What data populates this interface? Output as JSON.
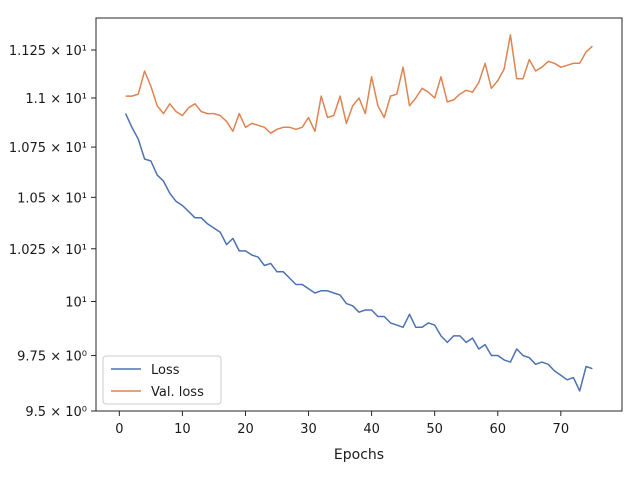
{
  "chart_data": {
    "type": "line",
    "title": "",
    "xlabel": "Epochs",
    "ylabel": "",
    "y_scale": "log",
    "xlim": [
      -3.7,
      79.7
    ],
    "ylim": [
      9.5,
      11.42
    ],
    "grid": false,
    "legend_position": "lower-left",
    "x_ticks": [
      0,
      10,
      20,
      30,
      40,
      50,
      60,
      70
    ],
    "y_ticks": [
      {
        "value": 9.5,
        "label": "9.5 × 10⁰"
      },
      {
        "value": 9.75,
        "label": "9.75 × 10⁰"
      },
      {
        "value": 10,
        "label": "10¹"
      },
      {
        "value": 10.25,
        "label": "1.025 × 10¹"
      },
      {
        "value": 10.5,
        "label": "1.05 × 10¹"
      },
      {
        "value": 10.75,
        "label": "1.075 × 10¹"
      },
      {
        "value": 11.0,
        "label": "1.1 × 10¹"
      },
      {
        "value": 11.25,
        "label": "1.125 × 10¹"
      }
    ],
    "x": [
      1,
      2,
      3,
      4,
      5,
      6,
      7,
      8,
      9,
      10,
      11,
      12,
      13,
      14,
      15,
      16,
      17,
      18,
      19,
      20,
      21,
      22,
      23,
      24,
      25,
      26,
      27,
      28,
      29,
      30,
      31,
      32,
      33,
      34,
      35,
      36,
      37,
      38,
      39,
      40,
      41,
      42,
      43,
      44,
      45,
      46,
      47,
      48,
      49,
      50,
      51,
      52,
      53,
      54,
      55,
      56,
      57,
      58,
      59,
      60,
      61,
      62,
      63,
      64,
      65,
      66,
      67,
      68,
      69,
      70,
      71,
      72,
      73,
      74,
      75
    ],
    "series": [
      {
        "name": "Loss",
        "color": "#4c72b0",
        "values": [
          10.92,
          10.85,
          10.79,
          10.69,
          10.68,
          10.61,
          10.58,
          10.52,
          10.48,
          10.46,
          10.43,
          10.4,
          10.4,
          10.37,
          10.35,
          10.33,
          10.27,
          10.3,
          10.24,
          10.24,
          10.22,
          10.21,
          10.17,
          10.18,
          10.14,
          10.14,
          10.11,
          10.08,
          10.08,
          10.06,
          10.04,
          10.05,
          10.05,
          10.04,
          10.03,
          9.99,
          9.98,
          9.95,
          9.96,
          9.96,
          9.93,
          9.93,
          9.9,
          9.89,
          9.88,
          9.94,
          9.88,
          9.88,
          9.9,
          9.89,
          9.84,
          9.81,
          9.84,
          9.84,
          9.81,
          9.83,
          9.78,
          9.8,
          9.75,
          9.75,
          9.73,
          9.72,
          9.78,
          9.75,
          9.74,
          9.71,
          9.72,
          9.71,
          9.68,
          9.66,
          9.64,
          9.65,
          9.59,
          9.7,
          9.69
        ]
      },
      {
        "name": "Val. loss",
        "color": "#dd8452",
        "values": [
          11.01,
          11.01,
          11.02,
          11.14,
          11.06,
          10.96,
          10.92,
          10.97,
          10.93,
          10.91,
          10.95,
          10.97,
          10.93,
          10.92,
          10.92,
          10.91,
          10.88,
          10.83,
          10.92,
          10.85,
          10.87,
          10.86,
          10.85,
          10.82,
          10.84,
          10.85,
          10.85,
          10.84,
          10.85,
          10.9,
          10.83,
          11.01,
          10.9,
          10.91,
          11.01,
          10.87,
          10.96,
          11.0,
          10.92,
          11.11,
          10.96,
          10.9,
          11.01,
          11.02,
          11.16,
          10.96,
          11.0,
          11.05,
          11.03,
          11.0,
          11.11,
          10.98,
          10.99,
          11.02,
          11.04,
          11.03,
          11.08,
          11.18,
          11.05,
          11.09,
          11.15,
          11.33,
          11.1,
          11.1,
          11.2,
          11.14,
          11.16,
          11.19,
          11.18,
          11.16,
          11.17,
          11.18,
          11.18,
          11.24,
          11.27
        ]
      }
    ]
  }
}
